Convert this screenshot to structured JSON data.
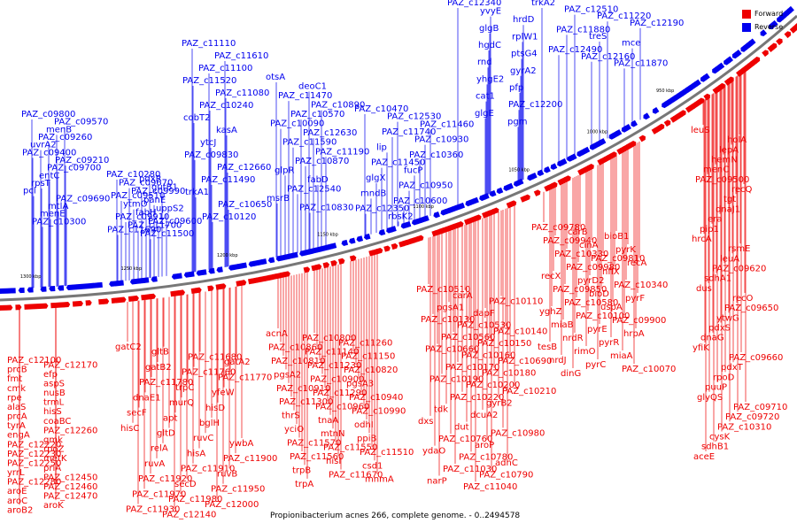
{
  "caption": "Propionibacterium acnes 266, complete genome. - 0..2494578",
  "legend": [
    {
      "label": "Forward",
      "color": "#ee0000"
    },
    {
      "label": "Reverse",
      "color": "#0000ee"
    }
  ],
  "colors": {
    "forward": "#ee0000",
    "reverse": "#0000ee",
    "backbone": "#777777"
  },
  "ticks": [
    "950 kbp",
    "1000 kbp",
    "1050 kbp",
    "1100 kbp",
    "1150 kbp",
    "1200 kbp",
    "1250 kbp",
    "1300 kbp"
  ],
  "reverse_labels": [
    "PAZ_c09800",
    "PAZ_c09570",
    "menB",
    "PAZ_c09260",
    "uvrA2",
    "PAZ_c09400",
    "PAZ_c09210",
    "PAZ_c09700",
    "entC",
    "rpsT",
    "pcl",
    "PAZ_c09690",
    "mtlA",
    "menE",
    "PAZ_c10300",
    "PAZ_c10280",
    "pdxR",
    "PAZ_c09670",
    "gutB1",
    "PAZ_c09990",
    "PAZ_c09510",
    "panE",
    "ytmO",
    "uppS2",
    "fabH",
    "PAZ_c09910",
    "PAZ_c09600",
    "PAZ_c11700",
    "PAZ_c11690",
    "PAZ_c11500",
    "PAZ_c11110",
    "PAZ_c11610",
    "PAZ_c11100",
    "PAZ_c11520",
    "PAZ_c11080",
    "PAZ_c10240",
    "cobT2",
    "kasA",
    "ytcJ",
    "PAZ_c09830",
    "PAZ_c12660",
    "PAZ_c11490",
    "trkA1",
    "PAZ_c10650",
    "PAZ_c10120",
    "otsA",
    "deoC1",
    "PAZ_c11470",
    "PAZ_c10890",
    "PAZ_c10570",
    "PAZ_c10090",
    "PAZ_c12630",
    "PAZ_c11590",
    "PAZ_c11190",
    "PAZ_c10870",
    "glpR",
    "fabD",
    "PAZ_c12540",
    "msrB",
    "PAZ_c10830",
    "PAZ_c10470",
    "PAZ_c12530",
    "PAZ_c11460",
    "PAZ_c11740",
    "PAZ_c10930",
    "lip",
    "PAZ_c10360",
    "PAZ_c11450",
    "fucP",
    "glgX",
    "PAZ_c10950",
    "mndB",
    "PAZ_c10600",
    "PAZ_c12350",
    "rbsK2",
    "PAZ_c12340",
    "yvyE",
    "hrdD",
    "glgB",
    "rplW1",
    "hgdC",
    "ptsG4",
    "rnd",
    "gyrA2",
    "yhgE2",
    "pfp",
    "cat1",
    "PAZ_c12200",
    "glgE",
    "pgm",
    "trkA2",
    "PAZ_c12510",
    "PAZ_c11220",
    "PAZ_c12190",
    "PAZ_c11880",
    "treS",
    "mce",
    "PAZ_c12490",
    "PAZ_c12160",
    "PAZ_c11870"
  ],
  "forward_labels": [
    "leuS",
    "holA",
    "lepA",
    "hemN",
    "menC",
    "PAZ_c09500",
    "recQ",
    "tgt",
    "dnaJ1",
    "era",
    "pip1",
    "hrcA",
    "rsmE",
    "leuA",
    "PAZ_c09620",
    "sdhA1",
    "dus",
    "recO",
    "PAZ_c09650",
    "ytwG",
    "pdxS",
    "dnaG",
    "yfiK",
    "PAZ_c09660",
    "pdxT",
    "rpoD",
    "puuP",
    "glyQS",
    "PAZ_c09710",
    "PAZ_c09720",
    "PAZ_c10310",
    "cysK",
    "sdhB1",
    "aceE",
    "PAZ_c09780",
    "carB",
    "bioB1",
    "PAZ_c09940",
    "cinA",
    "pyrK",
    "PAZ_c10330",
    "PAZ_c09810",
    "recA",
    "PAZ_c09980",
    "hflX",
    "recX",
    "pyrD2",
    "PAZ_c10340",
    "PAZ_c09850",
    "bioD",
    "pyrF",
    "PAZ_c10580",
    "uspA",
    "yghZ",
    "PAZ_c10100",
    "PAZ_c09900",
    "miaB",
    "pyrE",
    "hrpA",
    "nrdR",
    "pyrR",
    "tesB",
    "rimO",
    "miaA",
    "nrdJ",
    "pyrC",
    "PAZ_c10070",
    "dinG",
    "PAZ_c10510",
    "carA",
    "PAZ_c10110",
    "pgsA1",
    "dapF",
    "PAZ_c10130",
    "PAZ_c10530",
    "PAZ_c10140",
    "PAZ_c10560",
    "PAZ_c10150",
    "PAZ_c10660",
    "PAZ_c10160",
    "PAZ_c10690",
    "PAZ_c10170",
    "PAZ_c10180",
    "PAZ_c10190",
    "PAZ_c10200",
    "PAZ_c10210",
    "PAZ_c10220",
    "gyrB2",
    "tdk",
    "dcuA2",
    "dxs",
    "dut",
    "PAZ_c10980",
    "PAZ_c10760",
    "aroP",
    "ydaO",
    "PAZ_c10780",
    "adhC",
    "PAZ_c11030",
    "PAZ_c10790",
    "narP",
    "PAZ_c11040",
    "acnA",
    "PAZ_c10800",
    "PAZ_c11260",
    "PAZ_c10860",
    "PAZ_c11140",
    "PAZ_c11150",
    "PAZ_c10810",
    "PAZ_c11230",
    "PAZ_c10820",
    "pgsA2",
    "PAZ_c10900",
    "pgsA3",
    "PAZ_c10910",
    "PAZ_c11290",
    "PAZ_c10940",
    "PAZ_c11300",
    "PAZ_c10960",
    "PAZ_c10990",
    "thrS",
    "tnaA",
    "odhI",
    "yciO",
    "mtnN",
    "ppiB",
    "PAZ_c11570",
    "PAZ_c11550",
    "PAZ_c11510",
    "PAZ_c11560",
    "hisI",
    "csd1",
    "trpB",
    "PAZ_c11670",
    "mnmA",
    "trpA",
    "gatC2",
    "gltB",
    "PAZ_c11680",
    "gatA2",
    "gatB2",
    "PAZ_c11760",
    "PAZ_c11770",
    "PAZ_c11780",
    "trpC",
    "yfeW",
    "dnaE1",
    "murQ",
    "hisD",
    "secF",
    "apt",
    "bglH",
    "hisC",
    "gltD",
    "ruvC",
    "ywbA",
    "relA",
    "hisA",
    "PAZ_c11900",
    "ruvA",
    "PAZ_c11910",
    "ruvB",
    "PAZ_c11920",
    "secD",
    "PAZ_c11950",
    "PAZ_c11970",
    "PAZ_c11980",
    "PAZ_c12000",
    "PAZ_c11930",
    "PAZ_c12140",
    "PAZ_c12100",
    "PAZ_c12170",
    "prcB",
    "efp",
    "fmt",
    "aspS",
    "cmk",
    "nusB",
    "rpe",
    "trmL",
    "alaS",
    "hisS",
    "prcA",
    "coaBC",
    "tyrA",
    "PAZ_c12260",
    "engA",
    "gmk",
    "PAZ_c12220",
    "rpoZ",
    "PAZ_c12230",
    "metK",
    "PAZ_c12250",
    "priA",
    "yrrL",
    "PAZ_c12450",
    "PAZ_c12280",
    "PAZ_c12460",
    "aroE",
    "PAZ_c12470",
    "aroC",
    "aroK",
    "aroB2"
  ]
}
